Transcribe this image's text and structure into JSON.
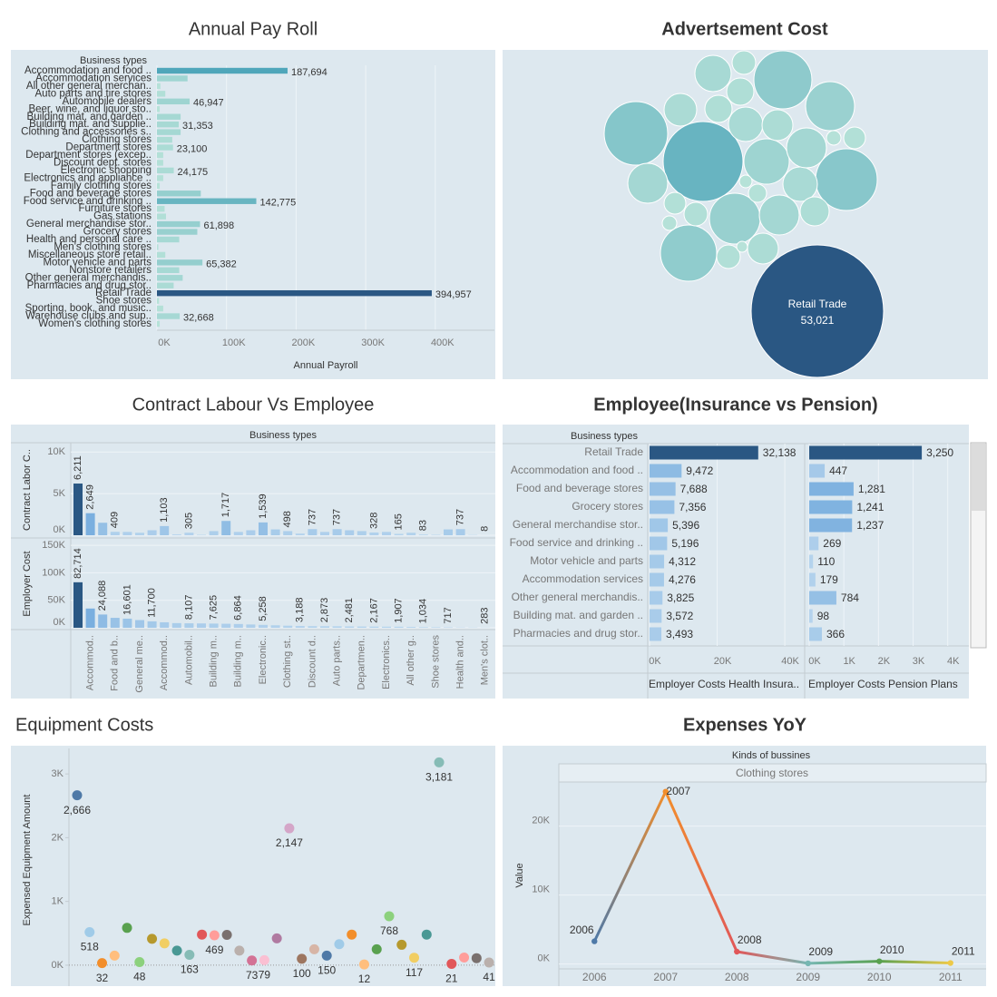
{
  "chart_data": [
    {
      "type": "hbar",
      "title": "Annual Pay Roll",
      "header": "Business types",
      "xlabel": "Annual Payroll",
      "categories": [
        "Accommodation and food ..",
        "Accommodation services",
        "All other general merchan..",
        "Auto parts and tire stores",
        "Automobile dealers",
        "Beer, wine, and liquor sto..",
        "Building mat. and garden ..",
        "Building mat. and supplie..",
        "Clothing and accessories s..",
        "Clothing stores",
        "Department stores",
        "Department stores (excep..",
        "Discount dept. stores",
        "Electronic shopping",
        "Electronics and appliance ..",
        "Family clothing stores",
        "Food and beverage stores",
        "Food service and drinking ..",
        "Furniture stores",
        "Gas stations",
        "General merchandise stor..",
        "Grocery stores",
        "Health and personal care ..",
        "Men's clothing stores",
        "Miscellaneous store retail..",
        "Motor vehicle and parts",
        "Nonstore retailers",
        "Other general merchandis..",
        "Pharmacies and drug stor..",
        "Retail Trade",
        "Shoe stores",
        "Sporting, book, and music..",
        "Warehouse clubs and sup..",
        "Women's clothing stores"
      ],
      "values": [
        187694,
        44000,
        5000,
        12000,
        46947,
        4000,
        34000,
        31353,
        34000,
        22000,
        23100,
        9000,
        9000,
        24175,
        9000,
        4000,
        63000,
        142775,
        11000,
        13000,
        61898,
        58000,
        32000,
        2000,
        12000,
        65382,
        32000,
        37000,
        24000,
        394957,
        3000,
        9000,
        32668,
        4000
      ],
      "value_labels": [
        "187,694",
        null,
        null,
        null,
        "46,947",
        null,
        null,
        "31,353",
        null,
        null,
        "23,100",
        null,
        null,
        "24,175",
        null,
        null,
        null,
        "142,775",
        null,
        null,
        "61,898",
        null,
        null,
        null,
        null,
        "65,382",
        null,
        null,
        null,
        "394,957",
        null,
        null,
        "32,668",
        null
      ],
      "xlim": [
        0,
        485000
      ],
      "xticks": [
        {
          "value": 0,
          "label": "0K"
        },
        {
          "value": 100000,
          "label": "100K"
        },
        {
          "value": 200000,
          "label": "200K"
        },
        {
          "value": 300000,
          "label": "300K"
        },
        {
          "value": 400000,
          "label": "400K"
        }
      ],
      "color_range": [
        "#b8e3d9",
        "#4aa3b8",
        "#2a5783"
      ]
    },
    {
      "type": "bubble",
      "title": "Advertsement Cost",
      "categories": [
        "Retail Trade",
        null,
        null,
        null,
        null,
        null,
        null,
        null,
        null,
        null,
        null,
        null,
        null,
        null,
        null,
        null,
        null,
        null,
        null,
        null,
        null,
        null,
        null,
        null,
        null,
        null,
        null,
        null,
        null,
        null,
        null
      ],
      "values": [
        53021,
        19262,
        12188,
        10188,
        11502,
        7253,
        9561,
        7800,
        6218,
        3980,
        3592,
        4816,
        3592,
        2875,
        4816,
        4816,
        3224,
        2239,
        2239,
        1681,
        2875,
        2547,
        1433,
        637,
        1681,
        1433,
        637,
        1681,
        995,
        488,
        358
      ],
      "value_labels": [
        "53,021",
        null,
        null,
        null,
        null,
        null,
        null,
        null,
        null,
        null,
        null,
        null,
        null,
        null,
        null,
        null,
        null,
        null,
        null,
        null,
        null,
        null,
        null,
        null,
        null,
        null,
        null,
        null,
        null,
        null,
        null
      ],
      "color_range": [
        "#b8e3d9",
        "#4aa3b8",
        "#2a5783"
      ]
    },
    {
      "type": "multi_bar",
      "title": "Contract Labour Vs Employee",
      "header": "Business types",
      "categories": [
        null,
        "Accommod..",
        null,
        "Food and b..",
        null,
        "General me..",
        null,
        "Accommod..",
        null,
        "Automobil..",
        null,
        "Building m..",
        null,
        "Building m..",
        null,
        "Electronic..",
        null,
        "Clothing st..",
        null,
        "Discount d..",
        null,
        "Auto parts..",
        null,
        "Departmen..",
        null,
        "Electronics..",
        null,
        "All other g..",
        null,
        "Shoe stores",
        null,
        "Health and..",
        null,
        "Men's clot.."
      ],
      "series": [
        {
          "name": "Contract Labor C..",
          "values": [
            6211,
            2649,
            1500,
            409,
            400,
            300,
            600,
            1103,
            100,
            305,
            50,
            500,
            1717,
            400,
            600,
            1539,
            700,
            498,
            200,
            737,
            400,
            737,
            600,
            500,
            328,
            400,
            165,
            300,
            83,
            50,
            700,
            737,
            30,
            8
          ],
          "value_labels": [
            "6,211",
            "2,649",
            null,
            "409",
            null,
            null,
            null,
            "1,103",
            null,
            "305",
            null,
            null,
            "1,717",
            null,
            null,
            "1,539",
            null,
            "498",
            null,
            "737",
            null,
            "737",
            null,
            null,
            "328",
            null,
            "165",
            null,
            "83",
            null,
            null,
            "737",
            null,
            "8"
          ],
          "ylim": [
            0,
            10900
          ],
          "yticks": [
            {
              "value": 0,
              "label": "0K"
            },
            {
              "value": 5000,
              "label": "5K"
            },
            {
              "value": 10000,
              "label": "10K"
            }
          ]
        },
        {
          "name": "Employer Cost",
          "values": [
            82714,
            35000,
            24088,
            18000,
            16601,
            14000,
            11700,
            10000,
            8500,
            8107,
            7900,
            7625,
            7300,
            6864,
            6000,
            5258,
            4500,
            3800,
            3188,
            3000,
            2873,
            2700,
            2481,
            2300,
            2167,
            2000,
            1907,
            1500,
            1034,
            900,
            717,
            500,
            400,
            283
          ],
          "value_labels": [
            "82,714",
            null,
            "24,088",
            null,
            "16,601",
            null,
            "11,700",
            null,
            null,
            "8,107",
            null,
            "7,625",
            null,
            "6,864",
            null,
            "5,258",
            null,
            null,
            "3,188",
            null,
            "2,873",
            null,
            "2,481",
            null,
            "2,167",
            null,
            "1,907",
            null,
            "1,034",
            null,
            "717",
            null,
            null,
            "283"
          ],
          "ylim": [
            0,
            160000
          ],
          "yticks": [
            {
              "value": 0,
              "label": "0K"
            },
            {
              "value": 50000,
              "label": "50K"
            },
            {
              "value": 100000,
              "label": "100K"
            },
            {
              "value": 150000,
              "label": "150K"
            }
          ]
        }
      ],
      "color_range": [
        "#b9d6ee",
        "#6fa8dc",
        "#2a5783"
      ]
    },
    {
      "type": "hbar_panes",
      "title": "Employee(Insurance vs Pension)",
      "header": "Business types",
      "categories": [
        "Retail Trade",
        "Accommodation and food ..",
        "Food and beverage stores",
        "Grocery stores",
        "General merchandise stor..",
        "Food service and drinking ..",
        "Motor vehicle and parts",
        "Accommodation services",
        "Other general merchandis..",
        "Building mat. and garden ..",
        "Pharmacies and drug stor.."
      ],
      "series": [
        {
          "name": "Employer Costs Health Insura..",
          "values": [
            32138,
            9472,
            7688,
            7356,
            5396,
            5196,
            4312,
            4276,
            3825,
            3572,
            3493
          ],
          "value_labels": [
            "32,138",
            "9,472",
            "7,688",
            "7,356",
            "5,396",
            "5,196",
            "4,312",
            "4,276",
            "3,825",
            "3,572",
            "3,493"
          ],
          "xlim": [
            0,
            44000
          ],
          "xticks": [
            {
              "value": 0,
              "label": "0K"
            },
            {
              "value": 20000,
              "label": "20K"
            },
            {
              "value": 40000,
              "label": "40K"
            }
          ]
        },
        {
          "name": "Employer Costs Pension Plans",
          "values": [
            3250,
            447,
            1281,
            1241,
            1237,
            269,
            110,
            179,
            784,
            98,
            366
          ],
          "value_labels": [
            "3,250",
            "447",
            "1,281",
            "1,241",
            "1,237",
            "269",
            "110",
            "179",
            "784",
            "98",
            "366"
          ],
          "xlim": [
            0,
            4400
          ],
          "xticks": [
            {
              "value": 0,
              "label": "0K"
            },
            {
              "value": 1000,
              "label": "1K"
            },
            {
              "value": 2000,
              "label": "2K"
            },
            {
              "value": 3000,
              "label": "3K"
            },
            {
              "value": 4000,
              "label": "4K"
            }
          ]
        }
      ],
      "color_range": [
        "#b9d6ee",
        "#6fa8dc",
        "#2a5783"
      ]
    },
    {
      "type": "scatter",
      "title": "Equipment Costs",
      "ylabel": "Expensed Equipment Amount",
      "values": [
        2666,
        518,
        32,
        150,
        585,
        48,
        414,
        343,
        229,
        163,
        480,
        469,
        475,
        229,
        73,
        79,
        420,
        2147,
        100,
        250,
        150,
        330,
        480,
        12,
        250,
        768,
        320,
        117,
        480,
        3181,
        21,
        120,
        110,
        41
      ],
      "value_labels": [
        "2,666",
        "518",
        "32",
        null,
        null,
        "48",
        null,
        null,
        null,
        "163",
        null,
        "469",
        null,
        null,
        "73",
        "79",
        null,
        "2,147",
        "100",
        null,
        "150",
        null,
        null,
        "12",
        null,
        "768",
        null,
        "117",
        null,
        "3,181",
        "21",
        null,
        null,
        "41"
      ],
      "colors": [
        "#4e79a7",
        "#a0cbe8",
        "#f28e2b",
        "#ffbe7d",
        "#59a14f",
        "#8cd17d",
        "#b6992d",
        "#f1ce63",
        "#499894",
        "#86bcb6",
        "#e15759",
        "#ff9d9a",
        "#79706e",
        "#bab0ac",
        "#d37295",
        "#fabfd2",
        "#b07aa1",
        "#d4a6c8",
        "#9d7660",
        "#d7b5a6",
        "#4e79a7",
        "#a0cbe8",
        "#f28e2b",
        "#ffbe7d",
        "#59a14f",
        "#8cd17d",
        "#b6992d",
        "#f1ce63",
        "#499894",
        "#86bcb6",
        "#e15759",
        "#ff9d9a",
        "#79706e",
        "#bab0ac"
      ],
      "ylim": [
        -300,
        3400
      ],
      "yticks": [
        {
          "value": 0,
          "label": "0K"
        },
        {
          "value": 1000,
          "label": "1K"
        },
        {
          "value": 2000,
          "label": "2K"
        },
        {
          "value": 3000,
          "label": "3K"
        }
      ]
    },
    {
      "type": "line",
      "title": "Expenses YoY",
      "header": "Kinds of bussines",
      "facet": "Clothing stores",
      "ylabel": "Value",
      "x": [
        2006,
        2007,
        2008,
        2009,
        2010,
        2011
      ],
      "values": [
        3300,
        25000,
        1800,
        100,
        400,
        150
      ],
      "colors": [
        "#4e79a7",
        "#f28e2b",
        "#e15759",
        "#76b7b2",
        "#59a14f",
        "#edc948"
      ],
      "xlim": [
        2005.5,
        2011.5
      ],
      "ylim": [
        -700,
        26400
      ],
      "yticks": [
        {
          "value": 0,
          "label": "0K"
        },
        {
          "value": 10000,
          "label": "10K"
        },
        {
          "value": 20000,
          "label": "20K"
        }
      ]
    }
  ]
}
